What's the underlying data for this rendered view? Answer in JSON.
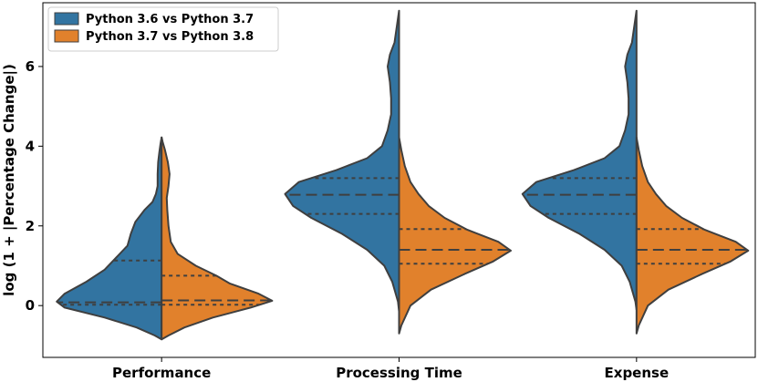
{
  "chart_data": {
    "type": "violin",
    "split": true,
    "ylabel": "log (1 + |Percentage Change|)",
    "xlabel": "",
    "title": "",
    "categories": [
      "Performance",
      "Processing Time",
      "Expense"
    ],
    "ylim": [
      -1.3,
      7.6
    ],
    "yticks": [
      0,
      2,
      4,
      6
    ],
    "legend_position": "top-left",
    "series": [
      {
        "name": "Python 3.6 vs Python 3.7",
        "color": "#3274a1",
        "side": "left",
        "violins": [
          {
            "profile": [
              [
                -0.85,
                0.0
              ],
              [
                -0.75,
                0.06
              ],
              [
                -0.55,
                0.22
              ],
              [
                -0.3,
                0.5
              ],
              [
                -0.05,
                0.85
              ],
              [
                0.1,
                0.92
              ],
              [
                0.3,
                0.85
              ],
              [
                0.6,
                0.66
              ],
              [
                0.9,
                0.5
              ],
              [
                1.2,
                0.4
              ],
              [
                1.5,
                0.3
              ],
              [
                1.8,
                0.27
              ],
              [
                2.1,
                0.23
              ],
              [
                2.4,
                0.15
              ],
              [
                2.6,
                0.08
              ],
              [
                2.8,
                0.05
              ],
              [
                3.0,
                0.035
              ],
              [
                3.3,
                0.035
              ],
              [
                3.6,
                0.03
              ],
              [
                3.85,
                0.02
              ],
              [
                4.05,
                0.01
              ],
              [
                4.22,
                0.0
              ]
            ],
            "quartiles": [
              0.02,
              0.08,
              1.13
            ]
          },
          {
            "profile": [
              [
                -0.15,
                0.0
              ],
              [
                0.1,
                0.01
              ],
              [
                0.6,
                0.06
              ],
              [
                1.0,
                0.13
              ],
              [
                1.4,
                0.28
              ],
              [
                1.8,
                0.5
              ],
              [
                2.2,
                0.77
              ],
              [
                2.5,
                0.93
              ],
              [
                2.8,
                1.0
              ],
              [
                3.1,
                0.88
              ],
              [
                3.4,
                0.55
              ],
              [
                3.7,
                0.28
              ],
              [
                4.0,
                0.15
              ],
              [
                4.4,
                0.1
              ],
              [
                4.8,
                0.07
              ],
              [
                5.2,
                0.07
              ],
              [
                5.6,
                0.08
              ],
              [
                6.0,
                0.1
              ],
              [
                6.3,
                0.08
              ],
              [
                6.6,
                0.04
              ],
              [
                7.0,
                0.02
              ],
              [
                7.4,
                0.0
              ]
            ],
            "quartiles": [
              2.3,
              2.78,
              3.2
            ]
          },
          {
            "profile": [
              [
                -0.1,
                0.0
              ],
              [
                0.1,
                0.01
              ],
              [
                0.6,
                0.06
              ],
              [
                1.0,
                0.13
              ],
              [
                1.4,
                0.28
              ],
              [
                1.8,
                0.5
              ],
              [
                2.2,
                0.77
              ],
              [
                2.5,
                0.93
              ],
              [
                2.8,
                1.0
              ],
              [
                3.1,
                0.88
              ],
              [
                3.4,
                0.55
              ],
              [
                3.7,
                0.28
              ],
              [
                4.0,
                0.15
              ],
              [
                4.4,
                0.1
              ],
              [
                4.8,
                0.07
              ],
              [
                5.2,
                0.07
              ],
              [
                5.6,
                0.08
              ],
              [
                6.0,
                0.1
              ],
              [
                6.3,
                0.08
              ],
              [
                6.6,
                0.04
              ],
              [
                7.0,
                0.02
              ],
              [
                7.4,
                0.0
              ]
            ],
            "quartiles": [
              2.3,
              2.78,
              3.2
            ]
          }
        ]
      },
      {
        "name": "Python 3.7 vs Python 3.8",
        "color": "#e1812c",
        "side": "right",
        "violins": [
          {
            "profile": [
              [
                -0.85,
                0.0
              ],
              [
                -0.75,
                0.06
              ],
              [
                -0.55,
                0.2
              ],
              [
                -0.3,
                0.45
              ],
              [
                -0.05,
                0.78
              ],
              [
                0.12,
                0.97
              ],
              [
                0.3,
                0.85
              ],
              [
                0.55,
                0.6
              ],
              [
                0.75,
                0.48
              ],
              [
                1.0,
                0.3
              ],
              [
                1.3,
                0.14
              ],
              [
                1.6,
                0.08
              ],
              [
                2.0,
                0.06
              ],
              [
                2.4,
                0.05
              ],
              [
                2.7,
                0.045
              ],
              [
                3.0,
                0.06
              ],
              [
                3.3,
                0.07
              ],
              [
                3.6,
                0.055
              ],
              [
                3.9,
                0.03
              ],
              [
                4.1,
                0.01
              ],
              [
                4.22,
                0.0
              ]
            ],
            "quartiles": [
              0.02,
              0.13,
              0.75
            ]
          },
          {
            "profile": [
              [
                -0.7,
                0.0
              ],
              [
                -0.5,
                0.02
              ],
              [
                0.0,
                0.1
              ],
              [
                0.4,
                0.28
              ],
              [
                0.8,
                0.58
              ],
              [
                1.1,
                0.82
              ],
              [
                1.38,
                0.98
              ],
              [
                1.6,
                0.87
              ],
              [
                1.9,
                0.6
              ],
              [
                2.2,
                0.4
              ],
              [
                2.5,
                0.26
              ],
              [
                2.8,
                0.17
              ],
              [
                3.1,
                0.1
              ],
              [
                3.5,
                0.05
              ],
              [
                3.9,
                0.02
              ],
              [
                4.22,
                0.0
              ]
            ],
            "quartiles": [
              1.05,
              1.4,
              1.92
            ]
          },
          {
            "profile": [
              [
                -0.7,
                0.0
              ],
              [
                -0.5,
                0.02
              ],
              [
                0.0,
                0.1
              ],
              [
                0.4,
                0.28
              ],
              [
                0.8,
                0.58
              ],
              [
                1.1,
                0.82
              ],
              [
                1.38,
                0.98
              ],
              [
                1.6,
                0.87
              ],
              [
                1.9,
                0.6
              ],
              [
                2.2,
                0.4
              ],
              [
                2.5,
                0.26
              ],
              [
                2.8,
                0.17
              ],
              [
                3.1,
                0.1
              ],
              [
                3.5,
                0.05
              ],
              [
                3.9,
                0.02
              ],
              [
                4.22,
                0.0
              ]
            ],
            "quartiles": [
              1.05,
              1.4,
              1.92
            ]
          }
        ]
      }
    ]
  }
}
